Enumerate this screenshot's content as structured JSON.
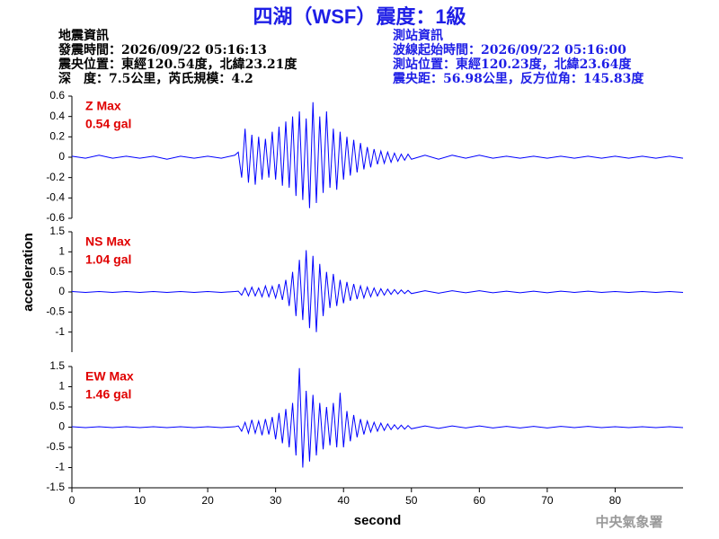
{
  "title": "四湖（WSF）震度：1級",
  "earthquake_info": {
    "heading": "地震資訊",
    "lines": [
      "發震時間：2026/09/22 05:16:13",
      "震央位置：東經120.54度，北緯23.21度",
      "深　度：7.5公里，芮氏規模：4.2"
    ]
  },
  "station_info": {
    "heading": "測站資訊",
    "lines": [
      "波線起始時間：2026/09/22 05:16:00",
      "測站位置：東經120.23度，北緯23.64度",
      "震央距：56.98公里，反方位角：145.83度"
    ]
  },
  "ylabel": "acceleration",
  "footer": "中央氣象署",
  "chart_data": [
    {
      "type": "line",
      "label": "Z Max",
      "max_label": "0.54 gal",
      "color": "#0000ff",
      "xlim": [
        0,
        90
      ],
      "ylim": [
        -0.6,
        0.6
      ],
      "yticks": [
        0.6,
        0.4,
        0.2,
        0,
        -0.2,
        -0.4,
        -0.6
      ],
      "x": [
        0,
        2,
        4,
        6,
        8,
        10,
        12,
        14,
        16,
        18,
        20,
        22,
        24,
        24.5,
        25,
        25.5,
        26,
        26.5,
        27,
        27.5,
        28,
        28.5,
        29,
        29.5,
        30,
        30.5,
        31,
        31.5,
        32,
        32.5,
        33,
        33.5,
        34,
        34.5,
        35,
        35.5,
        36,
        36.5,
        37,
        37.5,
        38,
        38.5,
        39,
        39.5,
        40,
        40.5,
        41,
        41.5,
        42,
        42.5,
        43,
        43.5,
        44,
        44.5,
        45,
        45.5,
        46,
        46.5,
        47,
        47.5,
        48,
        48.5,
        49,
        49.5,
        50,
        52,
        54,
        56,
        58,
        60,
        62,
        64,
        66,
        68,
        70,
        72,
        74,
        76,
        78,
        80,
        82,
        84,
        86,
        88,
        90
      ],
      "values": [
        0.01,
        -0.01,
        0.02,
        -0.01,
        0.01,
        -0.01,
        0.01,
        -0.02,
        0.01,
        -0.01,
        0.01,
        -0.01,
        0.02,
        0.05,
        -0.2,
        0.28,
        -0.25,
        0.22,
        -0.27,
        0.2,
        -0.22,
        0.18,
        -0.2,
        0.25,
        -0.22,
        0.3,
        -0.28,
        0.35,
        -0.3,
        0.4,
        -0.38,
        0.45,
        -0.42,
        0.38,
        -0.5,
        0.54,
        -0.45,
        0.4,
        -0.35,
        0.45,
        -0.3,
        0.28,
        -0.32,
        0.25,
        -0.22,
        0.2,
        -0.18,
        0.17,
        -0.15,
        0.14,
        -0.12,
        0.1,
        -0.1,
        0.08,
        -0.07,
        0.06,
        -0.06,
        0.05,
        -0.05,
        0.04,
        -0.04,
        0.03,
        -0.03,
        0.03,
        -0.02,
        0.02,
        -0.02,
        0.02,
        -0.01,
        0.02,
        -0.01,
        0.01,
        -0.01,
        0.01,
        -0.01,
        0.01,
        -0.01,
        0.01,
        -0.01,
        0.01,
        -0.01,
        0.01,
        -0.01,
        0.01,
        -0.01
      ]
    },
    {
      "type": "line",
      "label": "NS Max",
      "max_label": "1.04 gal",
      "color": "#0000ff",
      "xlim": [
        0,
        90
      ],
      "ylim": [
        -1.5,
        1.5
      ],
      "yticks": [
        1.5,
        1,
        0.5,
        0,
        -0.5,
        -1
      ],
      "x": [
        0,
        2,
        4,
        6,
        8,
        10,
        12,
        14,
        16,
        18,
        20,
        22,
        24,
        24.5,
        25,
        25.5,
        26,
        26.5,
        27,
        27.5,
        28,
        28.5,
        29,
        29.5,
        30,
        30.5,
        31,
        31.5,
        32,
        32.5,
        33,
        33.5,
        34,
        34.5,
        35,
        35.5,
        36,
        36.5,
        37,
        37.5,
        38,
        38.5,
        39,
        39.5,
        40,
        40.5,
        41,
        41.5,
        42,
        42.5,
        43,
        43.5,
        44,
        44.5,
        45,
        45.5,
        46,
        46.5,
        47,
        47.5,
        48,
        48.5,
        49,
        49.5,
        50,
        52,
        54,
        56,
        58,
        60,
        62,
        64,
        66,
        68,
        70,
        72,
        74,
        76,
        78,
        80,
        82,
        84,
        86,
        88,
        90
      ],
      "values": [
        0.01,
        -0.01,
        0.01,
        -0.01,
        0.01,
        -0.01,
        0.01,
        -0.01,
        0.01,
        -0.01,
        0.01,
        -0.01,
        0.01,
        0.02,
        -0.08,
        0.1,
        -0.1,
        0.12,
        -0.1,
        0.1,
        -0.12,
        0.15,
        -0.12,
        0.14,
        -0.15,
        0.2,
        -0.2,
        0.3,
        -0.35,
        0.5,
        -0.6,
        0.8,
        -0.7,
        1.04,
        -0.9,
        0.9,
        -1.0,
        0.7,
        -0.6,
        0.5,
        -0.4,
        0.45,
        -0.35,
        0.3,
        -0.28,
        0.25,
        -0.22,
        0.2,
        -0.18,
        0.15,
        -0.15,
        0.12,
        -0.12,
        0.1,
        -0.1,
        0.08,
        -0.08,
        0.07,
        -0.06,
        0.06,
        -0.05,
        0.05,
        -0.04,
        0.04,
        -0.04,
        0.03,
        -0.03,
        0.03,
        -0.02,
        0.03,
        -0.02,
        0.02,
        -0.02,
        0.02,
        -0.02,
        0.02,
        -0.01,
        0.02,
        -0.01,
        0.01,
        -0.01,
        0.01,
        -0.01,
        0.01,
        -0.01
      ]
    },
    {
      "type": "line",
      "label": "EW Max",
      "max_label": "1.46 gal",
      "color": "#0000ff",
      "xlabel": "second",
      "xlim": [
        0,
        90
      ],
      "xticks": [
        0,
        10,
        20,
        30,
        40,
        50,
        60,
        70,
        80
      ],
      "ylim": [
        -1.5,
        1.5
      ],
      "yticks": [
        1.5,
        1,
        0.5,
        0,
        -0.5,
        -1,
        -1.5
      ],
      "x": [
        0,
        2,
        4,
        6,
        8,
        10,
        12,
        14,
        16,
        18,
        20,
        22,
        24,
        24.5,
        25,
        25.5,
        26,
        26.5,
        27,
        27.5,
        28,
        28.5,
        29,
        29.5,
        30,
        30.5,
        31,
        31.5,
        32,
        32.5,
        33,
        33.5,
        34,
        34.5,
        35,
        35.5,
        36,
        36.5,
        37,
        37.5,
        38,
        38.5,
        39,
        39.5,
        40,
        40.5,
        41,
        41.5,
        42,
        42.5,
        43,
        43.5,
        44,
        44.5,
        45,
        45.5,
        46,
        46.5,
        47,
        47.5,
        48,
        48.5,
        49,
        49.5,
        50,
        52,
        54,
        56,
        58,
        60,
        62,
        64,
        66,
        68,
        70,
        72,
        74,
        76,
        78,
        80,
        82,
        84,
        86,
        88,
        90
      ],
      "values": [
        0.01,
        -0.01,
        0.01,
        -0.01,
        0.01,
        -0.01,
        0.01,
        -0.01,
        0.01,
        -0.01,
        0.01,
        -0.01,
        0.01,
        0.03,
        -0.1,
        0.12,
        -0.15,
        0.18,
        -0.15,
        0.15,
        -0.2,
        0.2,
        -0.18,
        0.25,
        -0.3,
        0.35,
        -0.4,
        0.45,
        -0.5,
        0.6,
        -0.7,
        1.46,
        -1.0,
        0.9,
        -0.85,
        0.8,
        -0.7,
        0.6,
        -0.55,
        0.5,
        -0.45,
        0.6,
        -0.5,
        0.85,
        -0.5,
        0.4,
        -0.35,
        0.3,
        -0.25,
        0.2,
        -0.18,
        0.15,
        -0.12,
        0.12,
        -0.1,
        0.1,
        -0.08,
        0.08,
        -0.06,
        0.06,
        -0.05,
        0.05,
        -0.05,
        0.04,
        -0.04,
        0.03,
        -0.03,
        0.03,
        -0.02,
        0.03,
        -0.02,
        0.02,
        -0.02,
        0.02,
        -0.02,
        0.02,
        -0.01,
        0.02,
        -0.01,
        0.01,
        -0.01,
        0.01,
        -0.01,
        0.01,
        -0.01
      ]
    }
  ]
}
